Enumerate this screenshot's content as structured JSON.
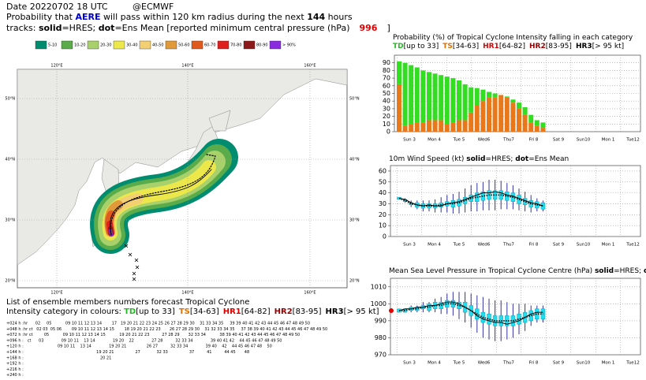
{
  "header": {
    "date": "Date 20220702 18 UTC",
    "org": "@ECMWF",
    "prob": [
      {
        "text": "Probability that "
      },
      {
        "text": "AERE",
        "color": "#0000cc",
        "bold": true
      },
      {
        "text": " will pass within 120 km radius during the next "
      },
      {
        "text": "144",
        "bold": true
      },
      {
        "text": " hours"
      }
    ],
    "tracks": [
      {
        "text": "tracks: "
      },
      {
        "text": "solid",
        "bold": true
      },
      {
        "text": "=HRES; "
      },
      {
        "text": "dot",
        "bold": true
      },
      {
        "text": "=Ens Mean [reported minimum central pressure (hPa)"
      }
    ],
    "pressure": 996,
    "pressure_color": "#e00000",
    "close": "]"
  },
  "map": {
    "legend": [
      {
        "label": "5-10",
        "color": "#008c6e"
      },
      {
        "label": "10-20",
        "color": "#5aab4a"
      },
      {
        "label": "20-30",
        "color": "#a8d06b"
      },
      {
        "label": "30-40",
        "color": "#ece74a"
      },
      {
        "label": "40-50",
        "color": "#f3cf73"
      },
      {
        "label": "50-60",
        "color": "#e09a3a"
      },
      {
        "label": "60-70",
        "color": "#e05a1e"
      },
      {
        "label": "70-80",
        "color": "#e01e1e"
      },
      {
        "label": "80-90",
        "color": "#8c1a1a"
      },
      {
        "label": "> 90%",
        "color": "#8a2be2"
      }
    ],
    "lon_labels": [
      "120°E",
      "140°E",
      "160°E"
    ],
    "lat_labels": [
      "50°N",
      "40°N",
      "30°N",
      "20°N"
    ]
  },
  "members": {
    "title": "List of ensemble members numbers forecast Tropical Cyclone",
    "intensity_prefix": "Intensity category in colours: ",
    "rows": [
      {
        "label": "+024 h :",
        "text": "hr      02     05           09 10 11 12 13 14        17   19 20 21 22 23 24 25 26 27 28 29 30    31 33 34 35     39 39 40 41 42 43 44 45 46 47 48 49 50",
        "color": "#22aa22"
      },
      {
        "label": "+048 h :",
        "text": "hr ct   02 03  05 06        09 10 11 12 13 14 15        18 19 20 21 22 23       26 27 28 29 30    31 32 33 34 35     37 38 39 40 41 42 43 44 45 46 47 48 49 50",
        "color": "#22aa22"
      },
      {
        "label": "+072 h :",
        "text": "hr ct         05           09 10 11 12 13 14 15           19 20 21 22 23          27 28 29       32 33 34           38 39 40 41 42 43 44 45 46 47 48 49 50",
        "color": "#e07000"
      },
      {
        "label": "+096 h :",
        "text": "   ct      03              09 10 11    13 14              19 20    22              27 28          32 33 34              39 40 41 42    44 45 46 47 48 49 50",
        "color": "#e07000"
      },
      {
        "label": "+120 h :",
        "text": "                           09 10 11    13 14              19 20 21                26 27          32 33 34              39 40    42    44 45 46 47 48    50",
        "color": "#e07000"
      },
      {
        "label": "+144 h :",
        "text": "                                                          19 20 21                 27             32 33                 37          41          44 45       48",
        "color": "#22aa22"
      },
      {
        "label": "+168 h :",
        "text": "                                                             20 21",
        "color": "#22aa22"
      },
      {
        "label": "+192 h :",
        "text": "",
        "color": "#22aa22"
      },
      {
        "label": "+216 h :",
        "text": "",
        "color": "#22aa22"
      },
      {
        "label": "+240 h :",
        "text": "",
        "color": "#22aa22"
      }
    ]
  },
  "intensity_categories": [
    {
      "name": "TD",
      "range": "[up to 33]",
      "color": "#22bb22"
    },
    {
      "name": "TS",
      "range": "[34-63]",
      "color": "#e07000"
    },
    {
      "name": "HR1",
      "range": "[64-82]",
      "color": "#dd0000"
    },
    {
      "name": "HR2",
      "range": "[83-95]",
      "color": "#990000"
    },
    {
      "name": "HR3",
      "range": "[> 95 kt]",
      "color": "#000000"
    }
  ],
  "timeline": {
    "days": [
      "Sun 3",
      "Mon 4",
      "Tue 5",
      "Wed6",
      "Thu7",
      "Fri 8",
      "Sat 9",
      "Sun10",
      "Mon 1",
      "Tue12"
    ],
    "colors": [
      "#dd0000",
      "#000000",
      "#000000",
      "#000000",
      "#000000",
      "#000000",
      "#000000",
      "#dd0000",
      "#000000",
      "#000000"
    ]
  },
  "chart_data": [
    {
      "type": "stacked_bar",
      "title": [
        {
          "text": "Probability (%) of Tropical Cyclone Intensity falling in each category"
        }
      ],
      "categories": [
        null,
        null,
        null,
        null,
        null,
        null,
        null,
        null,
        null,
        null,
        null,
        null,
        null,
        null,
        null,
        null,
        null,
        null,
        null,
        null,
        null,
        null,
        null,
        null,
        null
      ],
      "series": [
        {
          "name": "TS",
          "color": "#e8781a",
          "values": [
            62,
            8,
            10,
            12,
            12,
            15,
            15,
            15,
            10,
            12,
            15,
            15,
            25,
            35,
            40,
            45,
            45,
            48,
            45,
            38,
            30,
            22,
            12,
            8,
            5
          ]
        },
        {
          "name": "TD",
          "color": "#33dd22",
          "values": [
            30,
            82,
            77,
            72,
            68,
            63,
            61,
            59,
            62,
            58,
            52,
            47,
            33,
            22,
            15,
            7,
            5,
            0,
            1,
            4,
            8,
            10,
            10,
            7,
            7
          ]
        }
      ],
      "ylim": [
        0,
        100
      ],
      "yticks": [
        0,
        10,
        20,
        30,
        40,
        50,
        60,
        70,
        80,
        90
      ]
    },
    {
      "type": "box",
      "title": [
        {
          "text": "10m Wind Speed (kt) "
        },
        {
          "text": "solid",
          "bold": true
        },
        {
          "text": "=HRES; "
        },
        {
          "text": "dot",
          "bold": true
        },
        {
          "text": "=Ens Mean"
        }
      ],
      "categories": [
        null,
        null,
        null,
        null,
        null,
        null,
        null,
        null,
        null,
        null,
        null,
        null,
        null,
        null,
        null,
        null,
        null,
        null,
        null,
        null,
        null,
        null,
        null,
        null,
        null
      ],
      "hres": [
        35,
        34,
        31,
        29,
        28,
        29,
        28,
        28,
        30,
        31,
        32,
        34,
        36,
        38,
        40,
        40,
        41,
        40,
        38,
        37,
        35,
        33,
        31,
        30,
        28
      ],
      "ens_mean": [
        35,
        33,
        30,
        29,
        28,
        28,
        28,
        29,
        30,
        30,
        31,
        33,
        35,
        36,
        37,
        38,
        38,
        38,
        37,
        36,
        34,
        32,
        30,
        29,
        28
      ],
      "min": [
        34,
        31,
        27,
        25,
        23,
        23,
        22,
        22,
        22,
        21,
        21,
        22,
        23,
        23,
        24,
        24,
        24,
        25,
        25,
        25,
        24,
        23,
        22,
        23,
        23
      ],
      "q1": [
        34,
        32,
        29,
        27,
        26,
        26,
        26,
        27,
        28,
        27,
        28,
        30,
        32,
        32,
        33,
        34,
        34,
        34,
        33,
        32,
        30,
        29,
        27,
        26,
        25
      ],
      "q3": [
        36,
        34,
        31,
        31,
        30,
        30,
        30,
        31,
        32,
        33,
        34,
        36,
        38,
        40,
        41,
        42,
        42,
        42,
        41,
        40,
        38,
        35,
        33,
        32,
        31
      ],
      "max": [
        36,
        35,
        33,
        33,
        33,
        33,
        34,
        36,
        38,
        39,
        41,
        44,
        47,
        49,
        50,
        52,
        52,
        51,
        49,
        47,
        44,
        41,
        38,
        35,
        33
      ],
      "box_color": "#22ddee",
      "whisker_color": "#333399",
      "ylim": [
        0,
        65
      ],
      "yticks": [
        0,
        10,
        20,
        30,
        40,
        50,
        60
      ]
    },
    {
      "type": "box",
      "title": [
        {
          "text": "Mean Sea Level Pressure in Tropical Cyclone Centre (hPa) "
        },
        {
          "text": "solid",
          "bold": true
        },
        {
          "text": "=HRES; "
        },
        {
          "text": "dot",
          "bold": true
        },
        {
          "text": "=Ens Mean"
        }
      ],
      "categories": [
        null,
        null,
        null,
        null,
        null,
        null,
        null,
        null,
        null,
        null,
        null,
        null,
        null,
        null,
        null,
        null,
        null,
        null,
        null,
        null,
        null,
        null,
        null,
        null,
        null
      ],
      "hres": [
        996,
        997,
        997,
        998,
        998,
        999,
        999,
        1000,
        1001,
        1001,
        1000,
        998,
        996,
        993,
        991,
        990,
        989,
        989,
        988,
        989,
        990,
        992,
        994,
        995,
        995
      ],
      "ens_mean": [
        996,
        996,
        997,
        997,
        998,
        998,
        999,
        999,
        1000,
        1000,
        999,
        998,
        996,
        994,
        992,
        991,
        990,
        990,
        990,
        990,
        991,
        992,
        993,
        994,
        994
      ],
      "min": [
        995,
        995,
        995,
        995,
        995,
        995,
        995,
        994,
        994,
        993,
        991,
        989,
        986,
        983,
        980,
        979,
        978,
        978,
        979,
        980,
        982,
        984,
        987,
        989,
        989
      ],
      "q1": [
        995,
        995,
        996,
        996,
        997,
        996,
        997,
        997,
        998,
        998,
        997,
        995,
        993,
        991,
        989,
        988,
        987,
        987,
        987,
        987,
        988,
        989,
        990,
        991,
        991
      ],
      "q3": [
        997,
        997,
        998,
        998,
        999,
        1000,
        1001,
        1001,
        1002,
        1002,
        1001,
        1001,
        999,
        997,
        995,
        994,
        993,
        993,
        993,
        993,
        994,
        995,
        996,
        997,
        997
      ],
      "max": [
        997,
        997,
        999,
        999,
        1001,
        1001,
        1003,
        1004,
        1006,
        1007,
        1007,
        1007,
        1006,
        1005,
        1004,
        1003,
        1002,
        1002,
        1001,
        1000,
        1000,
        1000,
        999,
        999,
        999
      ],
      "box_color": "#22ddee",
      "whisker_color": "#333399",
      "observed_marker": true,
      "ylim": [
        970,
        1015
      ],
      "yticks": [
        970,
        980,
        990,
        1000,
        1010
      ]
    }
  ]
}
